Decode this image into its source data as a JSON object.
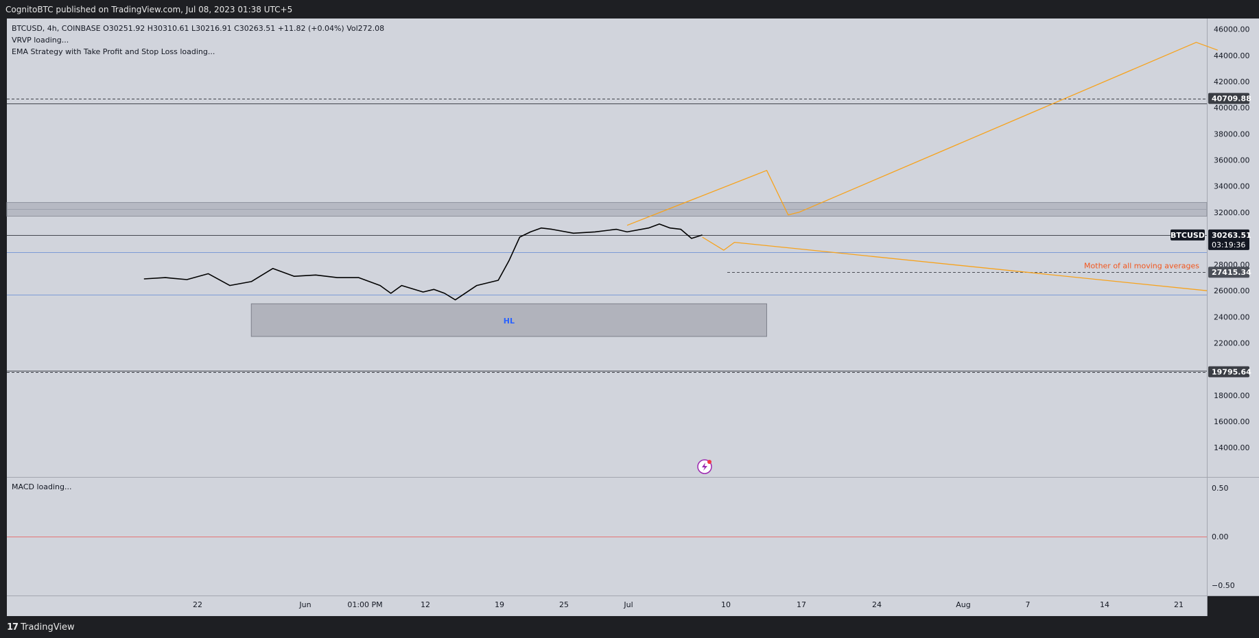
{
  "header": {
    "published": "CognitoBTC published on TradingView.com, Jul 08, 2023 01:38 UTC+5"
  },
  "legend": {
    "ohlc": "BTCUSD, 4h, COINBASE  O30251.92  H30310.61  L30216.91  C30263.51  +11.82 (+0.04%)  Vol272.08",
    "vrvp": "VRVP loading...",
    "ema": "EMA Strategy with Take Profit and Stop Loss loading...",
    "macd": "MACD loading..."
  },
  "footer": {
    "brand": "TradingView",
    "logo": "17"
  },
  "annotations": {
    "zone_label": "HL",
    "ma_label": "Mother of all moving averages"
  },
  "colors": {
    "background": "#d1d4dc",
    "candles": "#000000",
    "projection": "#f7a21b",
    "blue_lines": "#7b9bd6",
    "zone_fill": "#b1b3bc",
    "zone_label": "#2962ff",
    "ma_label": "#f2561d",
    "macd_zero": "#e57373"
  },
  "chart_data": {
    "type": "line",
    "symbol": "BTCUSD",
    "interval": "4h",
    "exchange": "COINBASE",
    "ohlc": {
      "open": 30251.92,
      "high": 30310.61,
      "low": 30216.91,
      "close": 30263.51,
      "change": 11.82,
      "change_pct": 0.04,
      "volume": 272.08
    },
    "last_price": {
      "label": "BTCUSD",
      "value": "30263.51",
      "countdown": "03:19:36"
    },
    "x_ticks": [
      "22",
      "Jun",
      "01:00 PM",
      "12",
      "19",
      "25",
      "Jul",
      "10",
      "17",
      "24",
      "Aug",
      "7",
      "14",
      "21"
    ],
    "y_ticks": [
      "46000.00",
      "44000.00",
      "42000.00",
      "40000.00",
      "38000.00",
      "36000.00",
      "34000.00",
      "32000.00",
      "28000.00",
      "26000.00",
      "24000.00",
      "22000.00",
      "18000.00",
      "16000.00",
      "14000.00"
    ],
    "ylim": [
      12800,
      46300
    ],
    "price_labels": [
      {
        "value": "40709.88"
      },
      {
        "value": "27415.34"
      },
      {
        "value": "19795.64"
      }
    ],
    "horizontal_levels": [
      {
        "name": "dashed-40709",
        "price": 40709.88,
        "style": "dashed"
      },
      {
        "name": "solid-40300",
        "price": 40300,
        "style": "solid"
      },
      {
        "name": "solid-30260",
        "price": 30263.51,
        "style": "solid"
      },
      {
        "name": "blue-28950",
        "price": 28950,
        "style": "blue"
      },
      {
        "name": "blue-25700",
        "price": 25700,
        "style": "blue"
      },
      {
        "name": "solid-19900",
        "price": 19900,
        "style": "solid"
      },
      {
        "name": "dashed-19795",
        "price": 19795.64,
        "style": "dashed"
      }
    ],
    "resistance_zone": {
      "from": 31700,
      "to": 32750
    },
    "hl_zone": {
      "from": 22500,
      "to": 25000,
      "start": "May 27",
      "end": "Jul 14"
    },
    "series": [
      {
        "points": [
          [
            "May 17",
            26900
          ],
          [
            "May 19",
            27000
          ],
          [
            "May 21",
            26850
          ],
          [
            "May 23",
            27300
          ],
          [
            "May 25",
            26400
          ],
          [
            "May 27",
            26700
          ],
          [
            "May 29",
            27700
          ],
          [
            "May 31",
            27100
          ],
          [
            "Jun 2",
            27200
          ],
          [
            "Jun 4",
            27000
          ],
          [
            "Jun 6",
            27000
          ],
          [
            "Jun 8",
            26400
          ],
          [
            "Jun 9",
            25800
          ],
          [
            "Jun 10",
            26400
          ],
          [
            "Jun 12",
            25900
          ],
          [
            "Jun 13",
            26100
          ],
          [
            "Jun 14",
            25800
          ],
          [
            "Jun 15",
            25300
          ],
          [
            "Jun 17",
            26400
          ],
          [
            "Jun 19",
            26800
          ],
          [
            "Jun 20",
            28300
          ],
          [
            "Jun 21",
            30100
          ],
          [
            "Jun 22",
            30500
          ],
          [
            "Jun 23",
            30800
          ],
          [
            "Jun 24",
            30700
          ],
          [
            "Jun 26",
            30400
          ],
          [
            "Jun 28",
            30500
          ],
          [
            "Jun 30",
            30700
          ],
          [
            "Jul 1",
            30500
          ],
          [
            "Jul 3",
            30800
          ],
          [
            "Jul 4",
            31100
          ],
          [
            "Jul 5",
            30800
          ],
          [
            "Jul 6",
            30700
          ],
          [
            "Jul 7",
            30000
          ],
          [
            "Jul 8",
            30263
          ]
        ]
      },
      {
        "points": [
          [
            "Jul 8",
            30100
          ],
          [
            "Jul 10",
            29100
          ],
          [
            "Jul 11",
            29700
          ],
          [
            "Aug 24",
            26000
          ]
        ]
      },
      {
        "points": [
          [
            "Jul 1",
            31000
          ],
          [
            "Jul 14",
            35200
          ],
          [
            "Jul 16",
            31800
          ],
          [
            "Jul 17",
            32000
          ],
          [
            "Aug 23",
            45000
          ],
          [
            "Aug 25",
            44400
          ]
        ]
      }
    ],
    "macd": {
      "y_ticks": [
        "0.50",
        "0.00",
        "−0.50"
      ]
    }
  }
}
